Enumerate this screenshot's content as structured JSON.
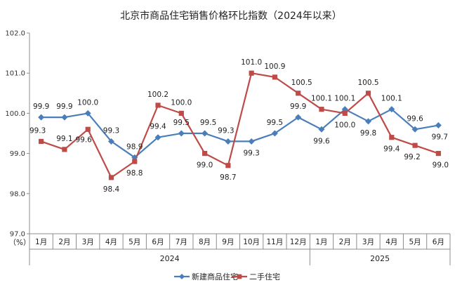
{
  "chart_data": {
    "type": "line",
    "title": "北京市商品住宅销售价格环比指数（2024年以来）",
    "y_unit_label": "（%）",
    "ylim": [
      97.0,
      102.0
    ],
    "yticks": [
      "97.0",
      "98.0",
      "99.0",
      "100.0",
      "101.0",
      "102.0"
    ],
    "ytick_values": [
      97.0,
      98.0,
      99.0,
      100.0,
      101.0,
      102.0
    ],
    "categories": [
      "1月",
      "2月",
      "3月",
      "4月",
      "5月",
      "6月",
      "7月",
      "8月",
      "9月",
      "10月",
      "11月",
      "12月",
      "1月",
      "2月",
      "3月",
      "4月",
      "5月",
      "6月"
    ],
    "years": [
      {
        "label": "2024",
        "start": 0,
        "end": 11
      },
      {
        "label": "2025",
        "start": 12,
        "end": 17
      }
    ],
    "series": [
      {
        "name": "新建商品住宅",
        "color": "#4a7ebb",
        "marker": "diamond",
        "values": [
          99.9,
          99.9,
          100.0,
          99.3,
          98.9,
          99.4,
          99.5,
          99.5,
          99.3,
          99.3,
          99.5,
          99.9,
          99.6,
          100.1,
          99.8,
          100.1,
          99.6,
          99.7
        ],
        "labels": [
          "99.9",
          "99.9",
          "100.0",
          "99.3",
          "98.9",
          "99.4",
          "99.5",
          "99.5",
          "99.3",
          "99.3",
          "99.5",
          "99.9",
          "99.6",
          "100.1",
          "99.8",
          "100.1",
          "99.6",
          "99.7"
        ]
      },
      {
        "name": "二手住宅",
        "color": "#be4b48",
        "marker": "square",
        "values": [
          99.3,
          99.1,
          99.6,
          98.4,
          98.8,
          100.2,
          100.0,
          99.0,
          98.7,
          101.0,
          100.9,
          100.5,
          100.1,
          100.0,
          100.5,
          99.4,
          99.2,
          99.0
        ],
        "labels": [
          "99.3",
          "99.1",
          "99.6",
          "98.4",
          "98.8",
          "100.2",
          "100.0",
          "99.0",
          "98.7",
          "101.0",
          "100.9",
          "100.5",
          "100.1",
          "100.0",
          "100.5",
          "99.4",
          "99.2",
          "99.0"
        ]
      }
    ],
    "legend_position": "bottom-center",
    "grid": false
  }
}
